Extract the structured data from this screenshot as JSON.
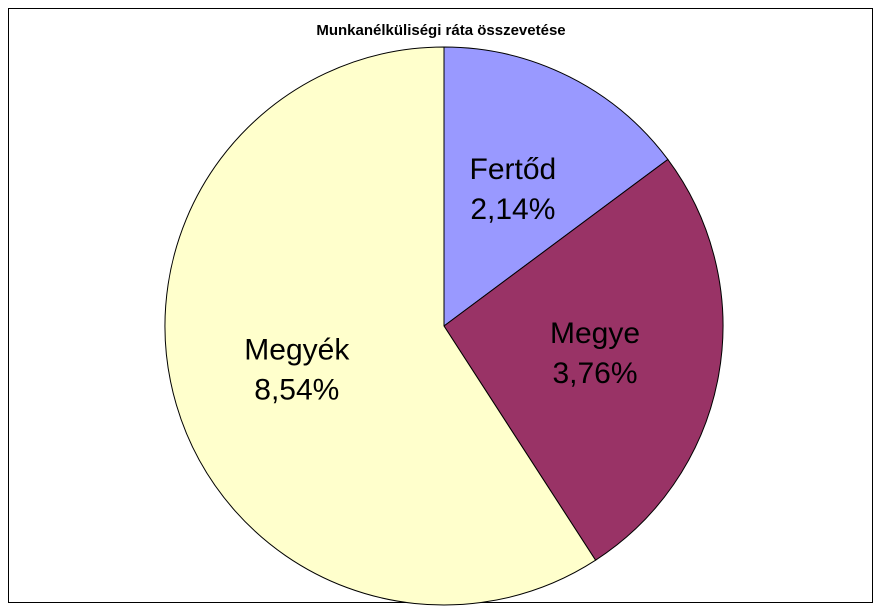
{
  "chart_data": {
    "type": "pie",
    "title": "Munkanélküliségi ráta összevetése",
    "categories": [
      "Fertőd",
      "Megye",
      "Megyék"
    ],
    "values": [
      2.14,
      3.76,
      8.54
    ],
    "value_labels": [
      "2,14%",
      "3,76%",
      "8,54%"
    ],
    "colors": [
      "#9999ff",
      "#993366",
      "#ffffcc"
    ]
  }
}
